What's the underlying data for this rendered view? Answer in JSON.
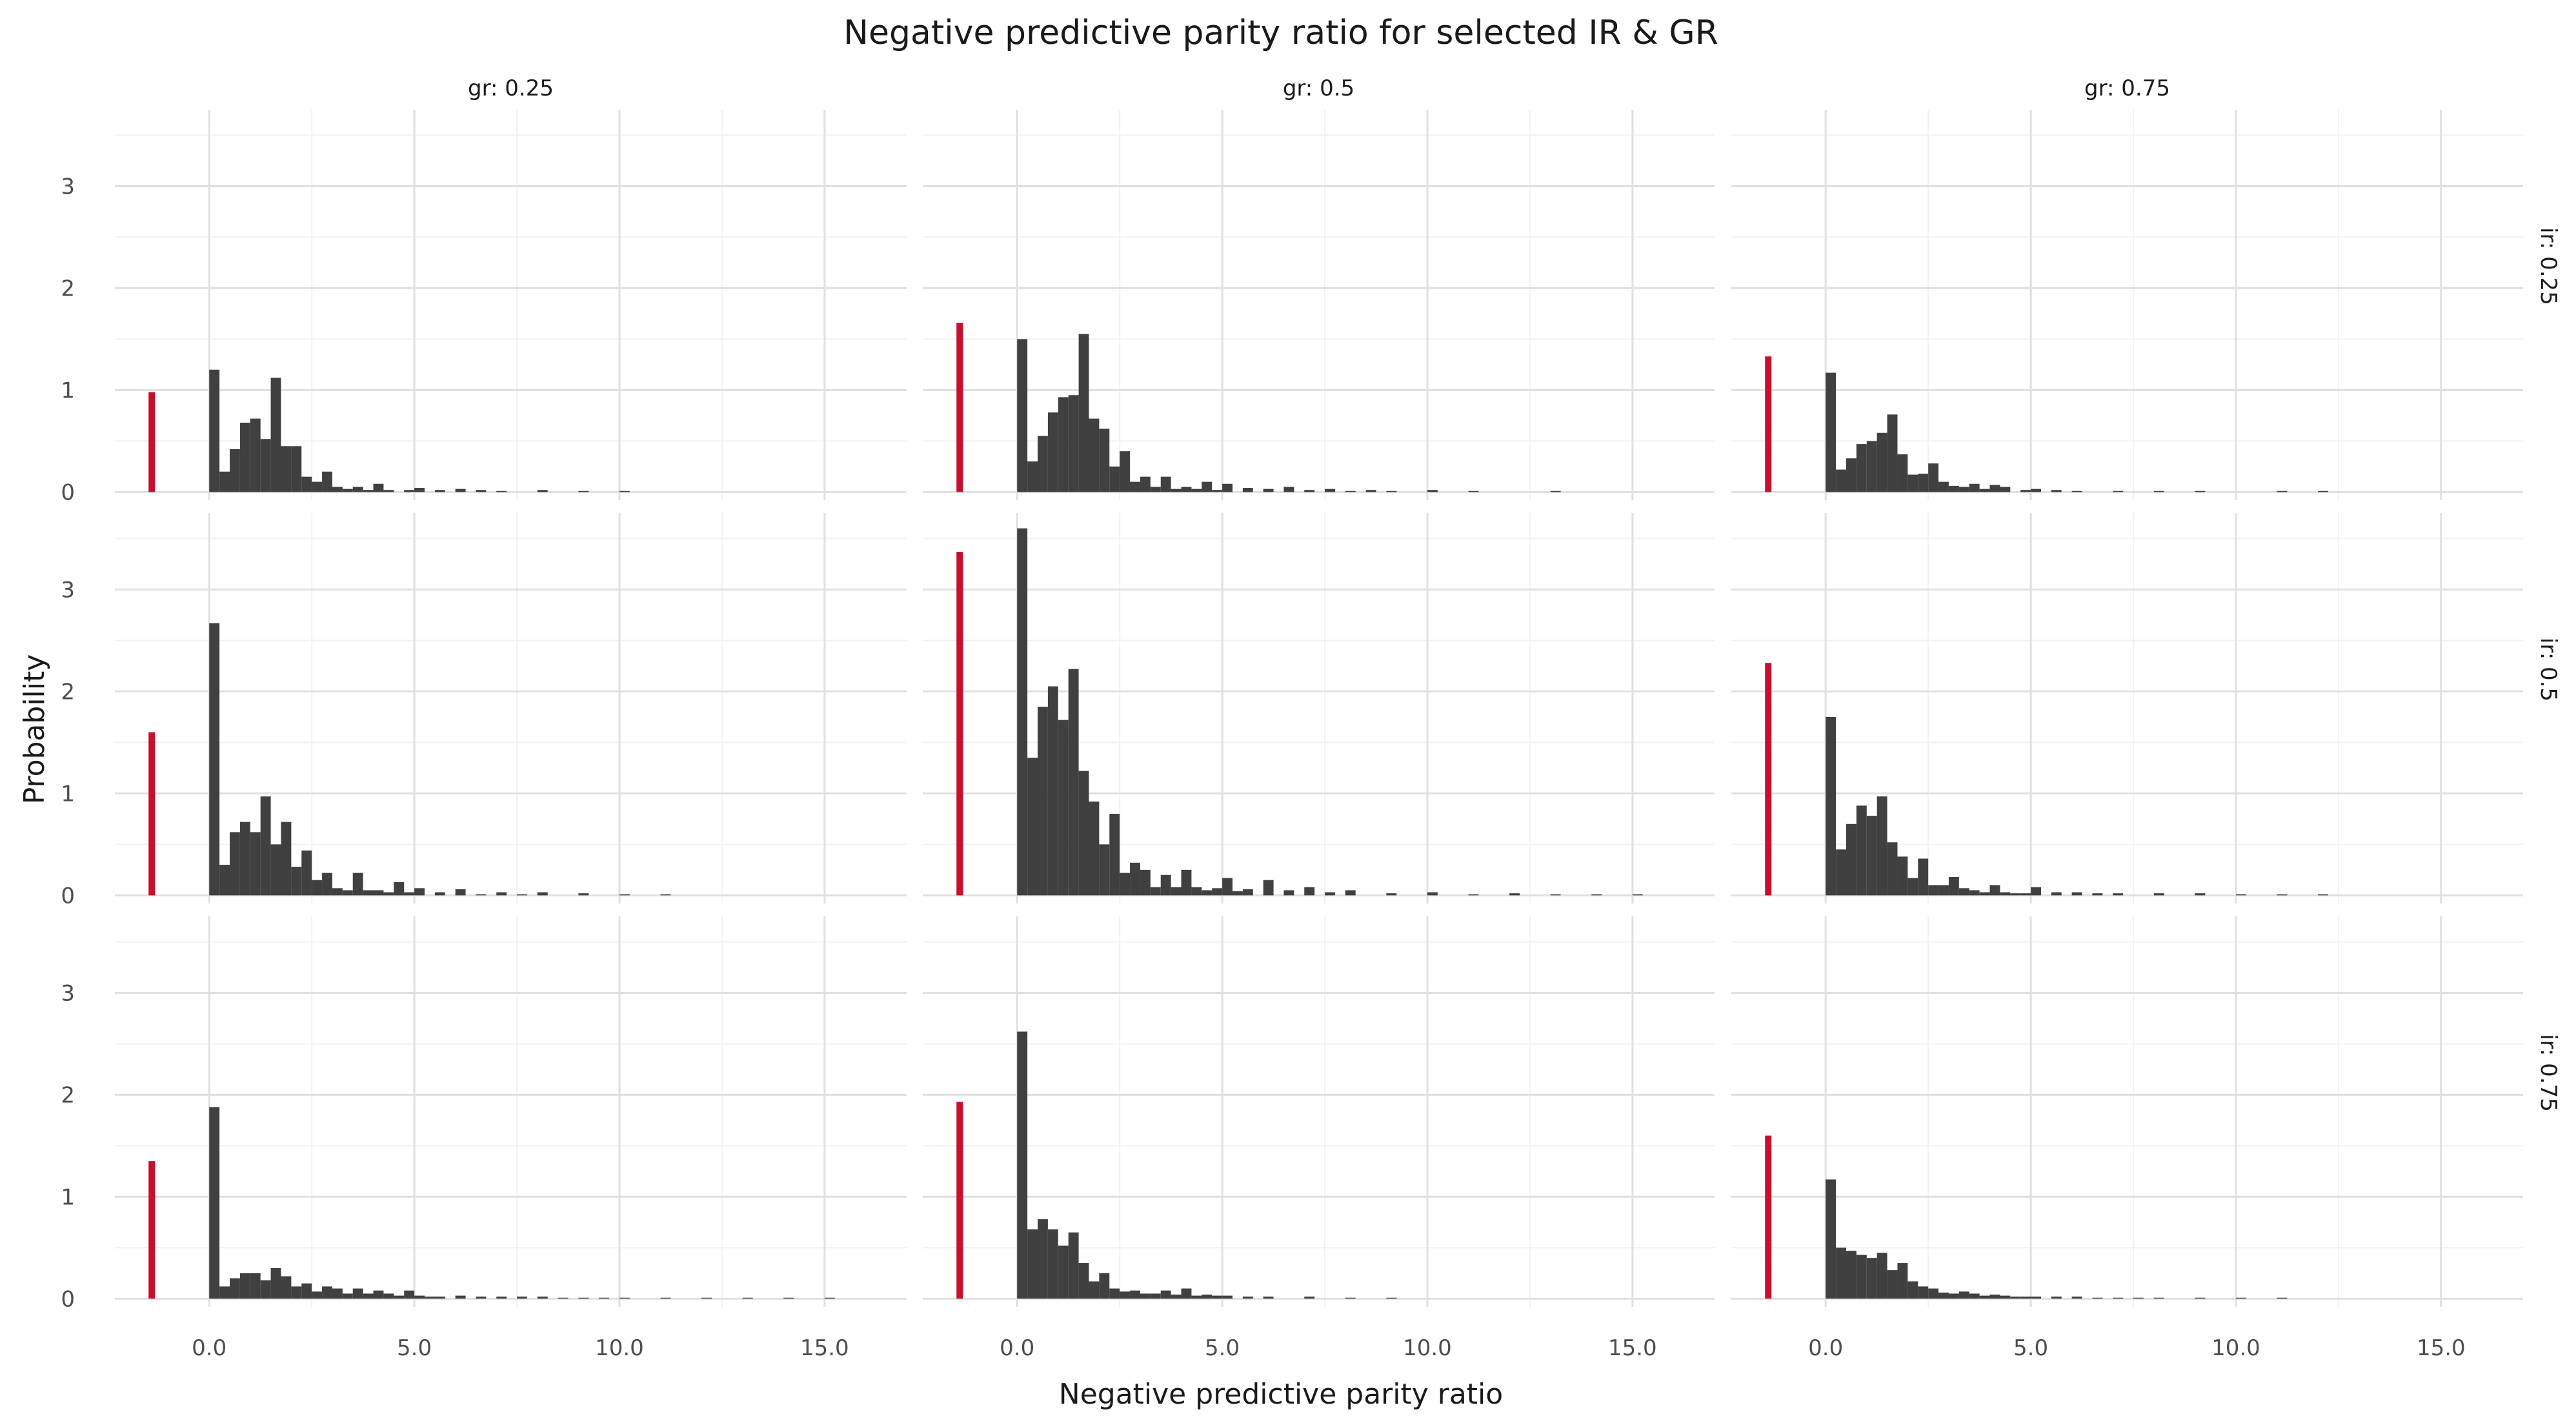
{
  "chart_data": {
    "type": "bar",
    "title": "Negative predictive parity ratio for selected IR & GR",
    "xlabel": "Negative predictive parity ratio",
    "ylabel": "Probability",
    "xlim": [
      -2.3,
      17.0
    ],
    "ylim": [
      -0.08,
      3.75
    ],
    "x_ticks": [
      "0.0",
      "5.0",
      "10.0",
      "15.0"
    ],
    "x_tick_values": [
      0,
      5,
      10,
      15
    ],
    "y_ticks": [
      "0",
      "1",
      "2",
      "3"
    ],
    "y_tick_values": [
      0,
      1,
      2,
      3
    ],
    "grid": true,
    "column_labels": [
      "gr: 0.25",
      "gr: 0.5",
      "gr: 0.75"
    ],
    "row_labels": [
      "ir: 0.25",
      "ir: 0.5",
      "ir: 0.75"
    ],
    "bin_width": 0.25,
    "highlight_color": "#c8102e",
    "bar_color": "#404040",
    "highlight_x": -1.4,
    "panels": [
      {
        "gr": "0.25",
        "ir": "0.25",
        "highlight_value": 0.98,
        "bins": [
          [
            0,
            1.2
          ],
          [
            0.25,
            0.2
          ],
          [
            0.5,
            0.42
          ],
          [
            0.75,
            0.68
          ],
          [
            1.0,
            0.72
          ],
          [
            1.25,
            0.52
          ],
          [
            1.5,
            1.12
          ],
          [
            1.75,
            0.45
          ],
          [
            2.0,
            0.45
          ],
          [
            2.25,
            0.15
          ],
          [
            2.5,
            0.1
          ],
          [
            2.75,
            0.2
          ],
          [
            3.0,
            0.05
          ],
          [
            3.25,
            0.03
          ],
          [
            3.5,
            0.05
          ],
          [
            3.75,
            0.02
          ],
          [
            4.0,
            0.08
          ],
          [
            4.25,
            0.02
          ],
          [
            4.75,
            0.02
          ],
          [
            5.0,
            0.04
          ],
          [
            5.5,
            0.02
          ],
          [
            6.0,
            0.03
          ],
          [
            6.5,
            0.02
          ],
          [
            7.0,
            0.01
          ],
          [
            8.0,
            0.02
          ],
          [
            9.0,
            0.01
          ],
          [
            10.0,
            0.01
          ]
        ]
      },
      {
        "gr": "0.5",
        "ir": "0.25",
        "highlight_value": 1.66,
        "bins": [
          [
            0,
            1.5
          ],
          [
            0.25,
            0.3
          ],
          [
            0.5,
            0.55
          ],
          [
            0.75,
            0.78
          ],
          [
            1.0,
            0.93
          ],
          [
            1.25,
            0.95
          ],
          [
            1.5,
            1.55
          ],
          [
            1.75,
            0.72
          ],
          [
            2.0,
            0.62
          ],
          [
            2.25,
            0.25
          ],
          [
            2.5,
            0.4
          ],
          [
            2.75,
            0.1
          ],
          [
            3.0,
            0.15
          ],
          [
            3.25,
            0.05
          ],
          [
            3.5,
            0.15
          ],
          [
            3.75,
            0.03
          ],
          [
            4.0,
            0.05
          ],
          [
            4.25,
            0.03
          ],
          [
            4.5,
            0.1
          ],
          [
            4.75,
            0.02
          ],
          [
            5.0,
            0.08
          ],
          [
            5.5,
            0.04
          ],
          [
            6.0,
            0.03
          ],
          [
            6.5,
            0.05
          ],
          [
            7.0,
            0.02
          ],
          [
            7.5,
            0.03
          ],
          [
            8.0,
            0.01
          ],
          [
            8.5,
            0.02
          ],
          [
            9.0,
            0.01
          ],
          [
            10.0,
            0.02
          ],
          [
            11.0,
            0.01
          ],
          [
            13.0,
            0.01
          ]
        ]
      },
      {
        "gr": "0.75",
        "ir": "0.25",
        "highlight_value": 1.33,
        "bins": [
          [
            0,
            1.17
          ],
          [
            0.25,
            0.22
          ],
          [
            0.5,
            0.33
          ],
          [
            0.75,
            0.47
          ],
          [
            1.0,
            0.5
          ],
          [
            1.25,
            0.58
          ],
          [
            1.5,
            0.76
          ],
          [
            1.75,
            0.37
          ],
          [
            2.0,
            0.17
          ],
          [
            2.25,
            0.18
          ],
          [
            2.5,
            0.28
          ],
          [
            2.75,
            0.1
          ],
          [
            3.0,
            0.06
          ],
          [
            3.25,
            0.05
          ],
          [
            3.5,
            0.08
          ],
          [
            3.75,
            0.03
          ],
          [
            4.0,
            0.07
          ],
          [
            4.25,
            0.05
          ],
          [
            4.75,
            0.02
          ],
          [
            5.0,
            0.03
          ],
          [
            5.5,
            0.02
          ],
          [
            6.0,
            0.01
          ],
          [
            7.0,
            0.01
          ],
          [
            8.0,
            0.01
          ],
          [
            9.0,
            0.01
          ],
          [
            11.0,
            0.01
          ],
          [
            12.0,
            0.01
          ]
        ]
      },
      {
        "gr": "0.25",
        "ir": "0.5",
        "highlight_value": 1.6,
        "bins": [
          [
            0,
            2.67
          ],
          [
            0.25,
            0.3
          ],
          [
            0.5,
            0.62
          ],
          [
            0.75,
            0.72
          ],
          [
            1.0,
            0.62
          ],
          [
            1.25,
            0.97
          ],
          [
            1.5,
            0.5
          ],
          [
            1.75,
            0.72
          ],
          [
            2.0,
            0.28
          ],
          [
            2.25,
            0.44
          ],
          [
            2.5,
            0.15
          ],
          [
            2.75,
            0.22
          ],
          [
            3.0,
            0.07
          ],
          [
            3.25,
            0.05
          ],
          [
            3.5,
            0.22
          ],
          [
            3.75,
            0.05
          ],
          [
            4.0,
            0.05
          ],
          [
            4.25,
            0.03
          ],
          [
            4.5,
            0.13
          ],
          [
            4.75,
            0.03
          ],
          [
            5.0,
            0.07
          ],
          [
            5.5,
            0.03
          ],
          [
            6.0,
            0.06
          ],
          [
            6.5,
            0.01
          ],
          [
            7.0,
            0.03
          ],
          [
            7.5,
            0.01
          ],
          [
            8.0,
            0.03
          ],
          [
            9.0,
            0.02
          ],
          [
            10.0,
            0.01
          ],
          [
            11.0,
            0.01
          ]
        ]
      },
      {
        "gr": "0.5",
        "ir": "0.5",
        "highlight_value": 3.37,
        "bins": [
          [
            0,
            3.6
          ],
          [
            0.25,
            1.35
          ],
          [
            0.5,
            1.85
          ],
          [
            0.75,
            2.05
          ],
          [
            1.0,
            1.72
          ],
          [
            1.25,
            2.22
          ],
          [
            1.5,
            1.22
          ],
          [
            1.75,
            0.92
          ],
          [
            2.0,
            0.5
          ],
          [
            2.25,
            0.8
          ],
          [
            2.5,
            0.22
          ],
          [
            2.75,
            0.32
          ],
          [
            3.0,
            0.25
          ],
          [
            3.25,
            0.08
          ],
          [
            3.5,
            0.2
          ],
          [
            3.75,
            0.08
          ],
          [
            4.0,
            0.25
          ],
          [
            4.25,
            0.08
          ],
          [
            4.5,
            0.05
          ],
          [
            4.75,
            0.07
          ],
          [
            5.0,
            0.17
          ],
          [
            5.25,
            0.04
          ],
          [
            5.5,
            0.06
          ],
          [
            6.0,
            0.15
          ],
          [
            6.5,
            0.05
          ],
          [
            7.0,
            0.08
          ],
          [
            7.5,
            0.03
          ],
          [
            8.0,
            0.05
          ],
          [
            9.0,
            0.02
          ],
          [
            10.0,
            0.03
          ],
          [
            11.0,
            0.01
          ],
          [
            12.0,
            0.02
          ],
          [
            13.0,
            0.01
          ],
          [
            14.0,
            0.01
          ],
          [
            15.0,
            0.01
          ]
        ]
      },
      {
        "gr": "0.75",
        "ir": "0.5",
        "highlight_value": 2.28,
        "bins": [
          [
            0,
            1.75
          ],
          [
            0.25,
            0.45
          ],
          [
            0.5,
            0.7
          ],
          [
            0.75,
            0.88
          ],
          [
            1.0,
            0.78
          ],
          [
            1.25,
            0.97
          ],
          [
            1.5,
            0.52
          ],
          [
            1.75,
            0.38
          ],
          [
            2.0,
            0.17
          ],
          [
            2.25,
            0.36
          ],
          [
            2.5,
            0.1
          ],
          [
            2.75,
            0.1
          ],
          [
            3.0,
            0.18
          ],
          [
            3.25,
            0.07
          ],
          [
            3.5,
            0.05
          ],
          [
            3.75,
            0.03
          ],
          [
            4.0,
            0.1
          ],
          [
            4.25,
            0.03
          ],
          [
            4.5,
            0.02
          ],
          [
            4.75,
            0.02
          ],
          [
            5.0,
            0.08
          ],
          [
            5.5,
            0.03
          ],
          [
            6.0,
            0.03
          ],
          [
            6.5,
            0.02
          ],
          [
            7.0,
            0.02
          ],
          [
            8.0,
            0.02
          ],
          [
            9.0,
            0.02
          ],
          [
            10.0,
            0.01
          ],
          [
            11.0,
            0.01
          ],
          [
            12.0,
            0.01
          ]
        ]
      },
      {
        "gr": "0.25",
        "ir": "0.75",
        "highlight_value": 1.35,
        "bins": [
          [
            0,
            1.88
          ],
          [
            0.25,
            0.12
          ],
          [
            0.5,
            0.2
          ],
          [
            0.75,
            0.25
          ],
          [
            1.0,
            0.25
          ],
          [
            1.25,
            0.18
          ],
          [
            1.5,
            0.3
          ],
          [
            1.75,
            0.22
          ],
          [
            2.0,
            0.12
          ],
          [
            2.25,
            0.15
          ],
          [
            2.5,
            0.07
          ],
          [
            2.75,
            0.12
          ],
          [
            3.0,
            0.1
          ],
          [
            3.25,
            0.05
          ],
          [
            3.5,
            0.1
          ],
          [
            3.75,
            0.05
          ],
          [
            4.0,
            0.08
          ],
          [
            4.25,
            0.05
          ],
          [
            4.5,
            0.03
          ],
          [
            4.75,
            0.08
          ],
          [
            5.0,
            0.03
          ],
          [
            5.25,
            0.02
          ],
          [
            5.5,
            0.02
          ],
          [
            6.0,
            0.03
          ],
          [
            6.5,
            0.02
          ],
          [
            7.0,
            0.02
          ],
          [
            7.5,
            0.02
          ],
          [
            8.0,
            0.02
          ],
          [
            8.5,
            0.01
          ],
          [
            9.0,
            0.01
          ],
          [
            9.5,
            0.01
          ],
          [
            10.0,
            0.01
          ],
          [
            11.0,
            0.01
          ],
          [
            12.0,
            0.01
          ],
          [
            13.0,
            0.01
          ],
          [
            14.0,
            0.01
          ],
          [
            15.0,
            0.01
          ]
        ]
      },
      {
        "gr": "0.5",
        "ir": "0.75",
        "highlight_value": 1.93,
        "bins": [
          [
            0,
            2.62
          ],
          [
            0.25,
            0.68
          ],
          [
            0.5,
            0.78
          ],
          [
            0.75,
            0.68
          ],
          [
            1.0,
            0.52
          ],
          [
            1.25,
            0.65
          ],
          [
            1.5,
            0.35
          ],
          [
            1.75,
            0.17
          ],
          [
            2.0,
            0.25
          ],
          [
            2.25,
            0.1
          ],
          [
            2.5,
            0.07
          ],
          [
            2.75,
            0.08
          ],
          [
            3.0,
            0.05
          ],
          [
            3.25,
            0.05
          ],
          [
            3.5,
            0.08
          ],
          [
            3.75,
            0.04
          ],
          [
            4.0,
            0.1
          ],
          [
            4.25,
            0.03
          ],
          [
            4.5,
            0.04
          ],
          [
            4.75,
            0.03
          ],
          [
            5.0,
            0.03
          ],
          [
            5.5,
            0.02
          ],
          [
            6.0,
            0.02
          ],
          [
            7.0,
            0.02
          ],
          [
            8.0,
            0.01
          ],
          [
            9.0,
            0.01
          ]
        ]
      },
      {
        "gr": "0.75",
        "ir": "0.75",
        "highlight_value": 1.6,
        "bins": [
          [
            0,
            1.17
          ],
          [
            0.25,
            0.5
          ],
          [
            0.5,
            0.47
          ],
          [
            0.75,
            0.43
          ],
          [
            1.0,
            0.4
          ],
          [
            1.25,
            0.45
          ],
          [
            1.5,
            0.28
          ],
          [
            1.75,
            0.35
          ],
          [
            2.0,
            0.17
          ],
          [
            2.25,
            0.12
          ],
          [
            2.5,
            0.1
          ],
          [
            2.75,
            0.06
          ],
          [
            3.0,
            0.05
          ],
          [
            3.25,
            0.07
          ],
          [
            3.5,
            0.05
          ],
          [
            3.75,
            0.03
          ],
          [
            4.0,
            0.04
          ],
          [
            4.25,
            0.03
          ],
          [
            4.5,
            0.02
          ],
          [
            4.75,
            0.02
          ],
          [
            5.0,
            0.02
          ],
          [
            5.5,
            0.02
          ],
          [
            6.0,
            0.02
          ],
          [
            6.5,
            0.01
          ],
          [
            7.0,
            0.01
          ],
          [
            7.5,
            0.01
          ],
          [
            8.0,
            0.01
          ],
          [
            9.0,
            0.01
          ],
          [
            10.0,
            0.01
          ],
          [
            11.0,
            0.01
          ]
        ]
      }
    ]
  }
}
